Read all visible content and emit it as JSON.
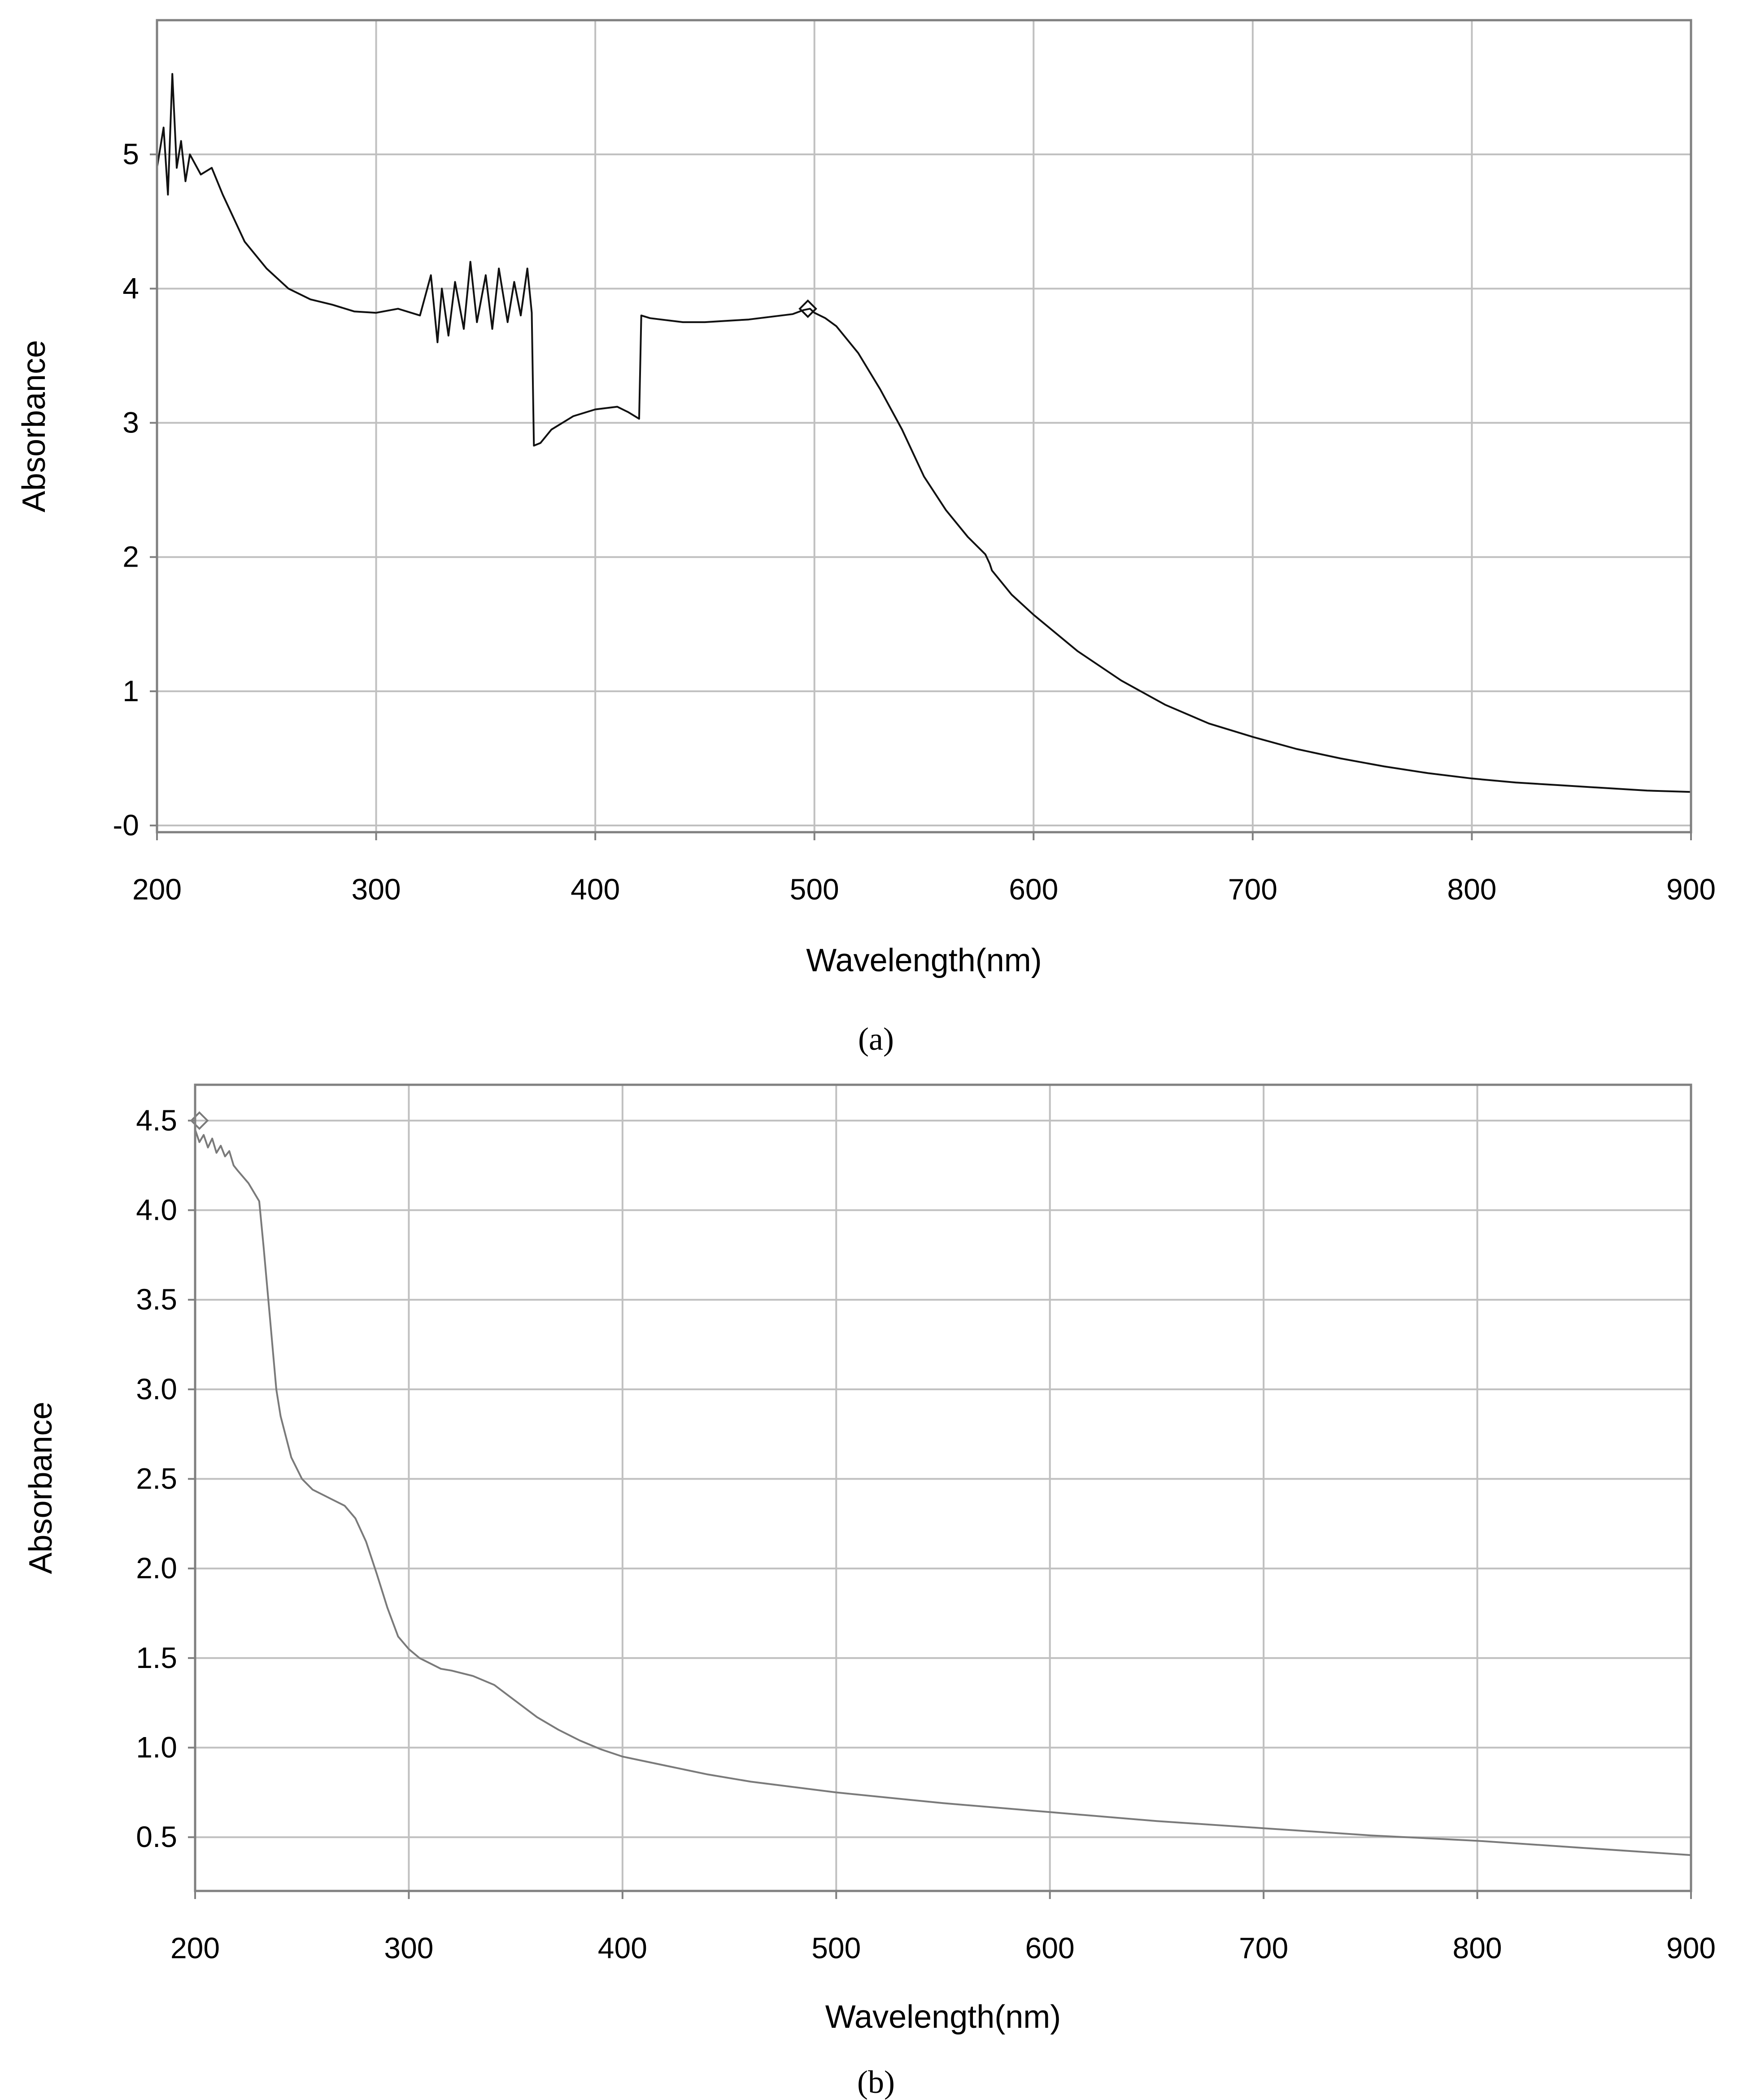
{
  "chart_data": [
    {
      "id": "a",
      "type": "line",
      "caption": "(a)",
      "xlabel": "Wavelength(nm)",
      "ylabel": "Absorbance",
      "xlim": [
        200,
        900
      ],
      "ylim": [
        -0.05,
        6.0
      ],
      "xticks": [
        200,
        300,
        400,
        500,
        600,
        700,
        800,
        900
      ],
      "xtick_labels": [
        "200",
        "300",
        "400",
        "500",
        "600",
        "700",
        "800",
        "900"
      ],
      "yticks": [
        0,
        1,
        2,
        3,
        4,
        5
      ],
      "ytick_labels": [
        "-0",
        "1",
        "2",
        "3",
        "4",
        "5"
      ],
      "grid": true,
      "line_color": "#111111",
      "series": [
        {
          "name": "Absorbance",
          "x": [
            200,
            203,
            205,
            207,
            209,
            211,
            213,
            215,
            220,
            225,
            230,
            240,
            250,
            260,
            270,
            280,
            290,
            300,
            310,
            320,
            325,
            328,
            330,
            333,
            336,
            340,
            343,
            346,
            350,
            353,
            356,
            360,
            363,
            366,
            369,
            371,
            372,
            375,
            380,
            390,
            400,
            410,
            415,
            420,
            421,
            425,
            430,
            440,
            450,
            460,
            470,
            480,
            490,
            495,
            498,
            500,
            505,
            510,
            520,
            530,
            540,
            550,
            560,
            570,
            578,
            580,
            581,
            590,
            600,
            620,
            640,
            660,
            680,
            700,
            720,
            740,
            760,
            780,
            800,
            820,
            840,
            860,
            880,
            900
          ],
          "y": [
            4.9,
            5.2,
            4.7,
            5.6,
            4.9,
            5.1,
            4.8,
            5.0,
            4.85,
            4.9,
            4.7,
            4.35,
            4.15,
            4.0,
            3.92,
            3.88,
            3.83,
            3.82,
            3.85,
            3.8,
            4.1,
            3.6,
            4.0,
            3.65,
            4.05,
            3.7,
            4.2,
            3.75,
            4.1,
            3.7,
            4.15,
            3.75,
            4.05,
            3.8,
            4.15,
            3.82,
            2.83,
            2.85,
            2.95,
            3.05,
            3.1,
            3.12,
            3.08,
            3.03,
            3.8,
            3.78,
            3.77,
            3.75,
            3.75,
            3.76,
            3.77,
            3.79,
            3.81,
            3.84,
            3.85,
            3.82,
            3.78,
            3.72,
            3.52,
            3.25,
            2.95,
            2.6,
            2.35,
            2.15,
            2.02,
            1.95,
            1.9,
            1.72,
            1.57,
            1.3,
            1.08,
            0.9,
            0.76,
            0.66,
            0.57,
            0.5,
            0.44,
            0.39,
            0.35,
            0.32,
            0.3,
            0.28,
            0.26,
            0.25
          ]
        }
      ],
      "marker": {
        "x": 497,
        "y": 3.85,
        "shape": "diamond"
      }
    },
    {
      "id": "b",
      "type": "line",
      "caption": "(b)",
      "xlabel": "Wavelength(nm)",
      "ylabel": "Absorbance",
      "xlim": [
        200,
        900
      ],
      "ylim": [
        0.2,
        4.7
      ],
      "xticks": [
        200,
        300,
        400,
        500,
        600,
        700,
        800,
        900
      ],
      "xtick_labels": [
        "200",
        "300",
        "400",
        "500",
        "600",
        "700",
        "800",
        "900"
      ],
      "yticks": [
        0.5,
        1.0,
        1.5,
        2.0,
        2.5,
        3.0,
        3.5,
        4.0,
        4.5
      ],
      "ytick_labels": [
        "0.5",
        "1.0",
        "1.5",
        "2.0",
        "2.5",
        "3.0",
        "3.5",
        "4.0",
        "4.5"
      ],
      "grid": true,
      "line_color": "#7a7a7a",
      "series": [
        {
          "name": "Absorbance",
          "x": [
            200,
            202,
            204,
            206,
            208,
            210,
            212,
            214,
            216,
            218,
            220,
            225,
            230,
            232,
            235,
            238,
            240,
            245,
            250,
            255,
            260,
            265,
            270,
            275,
            280,
            285,
            290,
            295,
            300,
            305,
            310,
            315,
            320,
            330,
            340,
            350,
            360,
            370,
            380,
            390,
            400,
            420,
            440,
            460,
            480,
            500,
            550,
            600,
            650,
            700,
            750,
            800,
            850,
            900
          ],
          "y": [
            4.45,
            4.38,
            4.42,
            4.35,
            4.4,
            4.32,
            4.36,
            4.3,
            4.33,
            4.25,
            4.22,
            4.15,
            4.05,
            3.8,
            3.4,
            3.0,
            2.85,
            2.62,
            2.5,
            2.44,
            2.41,
            2.38,
            2.35,
            2.28,
            2.15,
            1.97,
            1.78,
            1.62,
            1.55,
            1.5,
            1.47,
            1.44,
            1.43,
            1.4,
            1.35,
            1.26,
            1.17,
            1.1,
            1.04,
            0.99,
            0.95,
            0.9,
            0.85,
            0.81,
            0.78,
            0.75,
            0.69,
            0.64,
            0.59,
            0.55,
            0.51,
            0.48,
            0.44,
            0.4
          ]
        }
      ],
      "marker": {
        "x": 202,
        "y": 4.5,
        "shape": "diamond"
      }
    }
  ]
}
